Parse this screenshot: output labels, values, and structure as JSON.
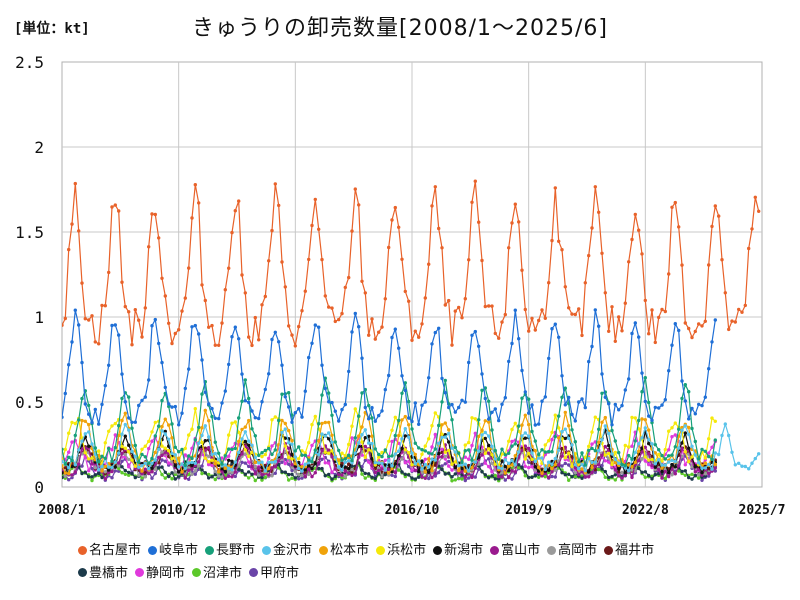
{
  "header": {
    "unit": "[単位：kt]",
    "title": "きゅうりの卸売数量[2008/1〜2025/6]"
  },
  "chart_data": {
    "type": "line",
    "title": "きゅうりの卸売数量[2008/1〜2025/6]",
    "unit": "[単位：kt]",
    "ylim": [
      0,
      2.5
    ],
    "y_ticks": [
      "0",
      "0.5",
      "1",
      "1.5",
      "2",
      "2.5"
    ],
    "x_ticks": [
      "2008/1",
      "2010/12",
      "2013/11",
      "2016/10",
      "2019/9",
      "2022/8",
      "2025/7"
    ],
    "grid": true,
    "legend_position": "bottom",
    "series": [
      {
        "name": "名古屋市",
        "color": "#e8622a",
        "start": "2008/1",
        "end": "2025/6",
        "base": 1.2,
        "amp": 0.75,
        "peak": 4,
        "jit": 0.12
      },
      {
        "name": "岐阜市",
        "color": "#1f6fd6",
        "start": "2008/1",
        "end": "2024/5",
        "base": 0.62,
        "amp": 0.55,
        "peak": 4,
        "jit": 0.07
      },
      {
        "name": "長野市",
        "color": "#17a07a",
        "start": "2008/1",
        "end": "2024/5",
        "base": 0.32,
        "amp": 0.42,
        "peak": 7,
        "jit": 0.05
      },
      {
        "name": "金沢市",
        "color": "#59c3ea",
        "start": "2008/1",
        "end": "2025/6",
        "base": 0.2,
        "amp": 0.2,
        "peak": 7,
        "jit": 0.04
      },
      {
        "name": "松本市",
        "color": "#f0a30a",
        "start": "2008/1",
        "end": "2024/5",
        "base": 0.22,
        "amp": 0.28,
        "peak": 7,
        "jit": 0.05
      },
      {
        "name": "浜松市",
        "color": "#f5e90a",
        "start": "2008/1",
        "end": "2024/5",
        "base": 0.25,
        "amp": 0.25,
        "peak": 4,
        "jit": 0.05
      },
      {
        "name": "新潟市",
        "color": "#111111",
        "start": "2008/1",
        "end": "2024/5",
        "base": 0.18,
        "amp": 0.18,
        "peak": 7,
        "jit": 0.04
      },
      {
        "name": "富山市",
        "color": "#9a1a8e",
        "start": "2008/1",
        "end": "2024/5",
        "base": 0.13,
        "amp": 0.15,
        "peak": 7,
        "jit": 0.03
      },
      {
        "name": "高岡市",
        "color": "#9a9a9a",
        "start": "2008/1",
        "end": "2024/5",
        "base": 0.13,
        "amp": 0.12,
        "peak": 7,
        "jit": 0.03
      },
      {
        "name": "福井市",
        "color": "#6b1a1a",
        "start": "2008/1",
        "end": "2024/5",
        "base": 0.15,
        "amp": 0.12,
        "peak": 7,
        "jit": 0.03
      },
      {
        "name": "豊橋市",
        "color": "#1c3a4a",
        "start": "2008/1",
        "end": "2024/5",
        "base": 0.09,
        "amp": 0.07,
        "peak": 4,
        "jit": 0.02
      },
      {
        "name": "静岡市",
        "color": "#e03adc",
        "start": "2008/1",
        "end": "2024/5",
        "base": 0.18,
        "amp": 0.16,
        "peak": 4,
        "jit": 0.04
      },
      {
        "name": "沼津市",
        "color": "#5cc82a",
        "start": "2008/1",
        "end": "2024/5",
        "base": 0.08,
        "amp": 0.07,
        "peak": 4,
        "jit": 0.02
      },
      {
        "name": "甲府市",
        "color": "#6a44a8",
        "start": "2008/1",
        "end": "2024/5",
        "base": 0.1,
        "amp": 0.1,
        "peak": 7,
        "jit": 0.03
      }
    ]
  }
}
